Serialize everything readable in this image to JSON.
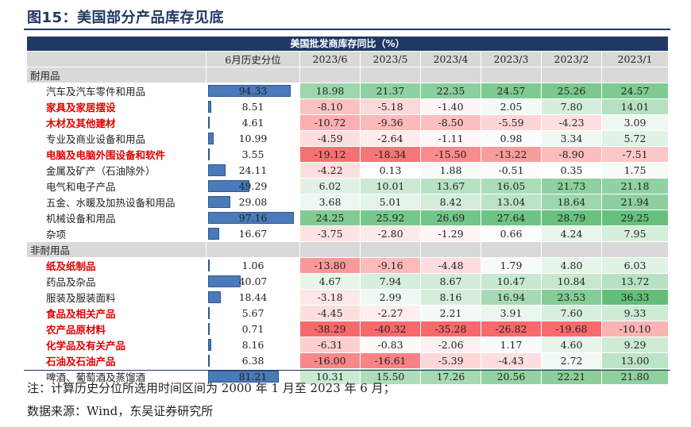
{
  "figure": {
    "title": "图15：美国部分产品库存见底",
    "table_title": "美国批发商库存同比（%）",
    "headers": [
      "",
      "6月历史分位",
      "2023/6",
      "2023/5",
      "2023/4",
      "2023/3",
      "2023/2",
      "2023/1"
    ],
    "note": "注：计算历史分位所选用时间区间为 2000 年 1 月至 2023 年 6 月；",
    "source": "数据来源：Wind，东吴证券研究所"
  },
  "groups": [
    {
      "label": "耐用品",
      "rows": [
        {
          "name": "汽车及汽车零件和用品",
          "highlight": false,
          "pct": "94.33",
          "values": [
            "18.98",
            "21.37",
            "22.35",
            "24.57",
            "25.26",
            "24.57"
          ]
        },
        {
          "name": "家具及家居摆设",
          "highlight": true,
          "pct": "8.51",
          "values": [
            "-8.10",
            "-5.18",
            "-1.40",
            "2.05",
            "7.80",
            "14.01"
          ]
        },
        {
          "name": "木材及其他建材",
          "highlight": true,
          "pct": "4.61",
          "values": [
            "-10.72",
            "-9.36",
            "-8.50",
            "-5.59",
            "-4.23",
            "3.09"
          ]
        },
        {
          "name": "专业及商业设备和用品",
          "highlight": false,
          "pct": "10.99",
          "values": [
            "-4.59",
            "-2.64",
            "-1.11",
            "0.98",
            "3.34",
            "5.72"
          ]
        },
        {
          "name": "电脑及电脑外围设备和软件",
          "highlight": true,
          "pct": "3.55",
          "values": [
            "-19.12",
            "-18.34",
            "-15.50",
            "-13.22",
            "-8.90",
            "-7.51"
          ]
        },
        {
          "name": "金属及矿产（石油除外）",
          "highlight": false,
          "pct": "24.11",
          "values": [
            "-4.22",
            "0.13",
            "1.88",
            "-0.51",
            "0.35",
            "1.75"
          ]
        },
        {
          "name": "电气和电子产品",
          "highlight": false,
          "pct": "49.29",
          "values": [
            "6.02",
            "10.01",
            "13.67",
            "16.05",
            "21.73",
            "21.18"
          ]
        },
        {
          "name": "五金、水暖及加热设备和用品",
          "highlight": false,
          "pct": "29.08",
          "values": [
            "3.68",
            "5.01",
            "8.42",
            "13.04",
            "18.64",
            "21.94"
          ]
        },
        {
          "name": "机械设备和用品",
          "highlight": false,
          "pct": "97.16",
          "values": [
            "24.25",
            "25.92",
            "26.69",
            "27.64",
            "28.79",
            "29.25"
          ]
        },
        {
          "name": "杂项",
          "highlight": false,
          "pct": "16.67",
          "values": [
            "-3.75",
            "-2.80",
            "-1.29",
            "0.66",
            "4.24",
            "7.95"
          ]
        }
      ]
    },
    {
      "label": "非耐用品",
      "rows": [
        {
          "name": "纸及纸制品",
          "highlight": true,
          "pct": "1.06",
          "values": [
            "-13.80",
            "-9.16",
            "-4.48",
            "1.79",
            "4.80",
            "6.03"
          ]
        },
        {
          "name": "药品及杂品",
          "highlight": false,
          "pct": "40.07",
          "values": [
            "4.67",
            "7.94",
            "8.67",
            "10.47",
            "10.84",
            "13.72"
          ]
        },
        {
          "name": "服装及服装面料",
          "highlight": false,
          "pct": "18.44",
          "values": [
            "-3.18",
            "2.99",
            "8.16",
            "16.94",
            "23.53",
            "36.33"
          ]
        },
        {
          "name": "食品及相关产品",
          "highlight": true,
          "pct": "5.67",
          "values": [
            "-4.45",
            "-2.27",
            "2.21",
            "3.91",
            "7.60",
            "9.33"
          ]
        },
        {
          "name": "农产品原材料",
          "highlight": true,
          "pct": "0.71",
          "values": [
            "-38.29",
            "-40.32",
            "-35.28",
            "-26.82",
            "-19.68",
            "-10.10"
          ]
        },
        {
          "name": "化学品及有关产品",
          "highlight": true,
          "pct": "8.16",
          "values": [
            "-6.31",
            "-0.83",
            "-2.06",
            "1.17",
            "4.60",
            "9.29"
          ]
        },
        {
          "name": "石油及石油产品",
          "highlight": true,
          "pct": "6.38",
          "values": [
            "-16.00",
            "-16.61",
            "-5.39",
            "-4.43",
            "2.72",
            "13.00"
          ]
        },
        {
          "name": "啤酒、葡萄酒及蒸馏酒",
          "highlight": false,
          "pct": "81.21",
          "values": [
            "10.31",
            "15.50",
            "17.26",
            "20.56",
            "22.21",
            "21.80"
          ]
        }
      ]
    }
  ],
  "colors": {
    "header_bg": "#203864",
    "group_bg": "#d9d9d9",
    "pct_bar": "#4a7ab8",
    "highlight_text": "#e00000"
  }
}
